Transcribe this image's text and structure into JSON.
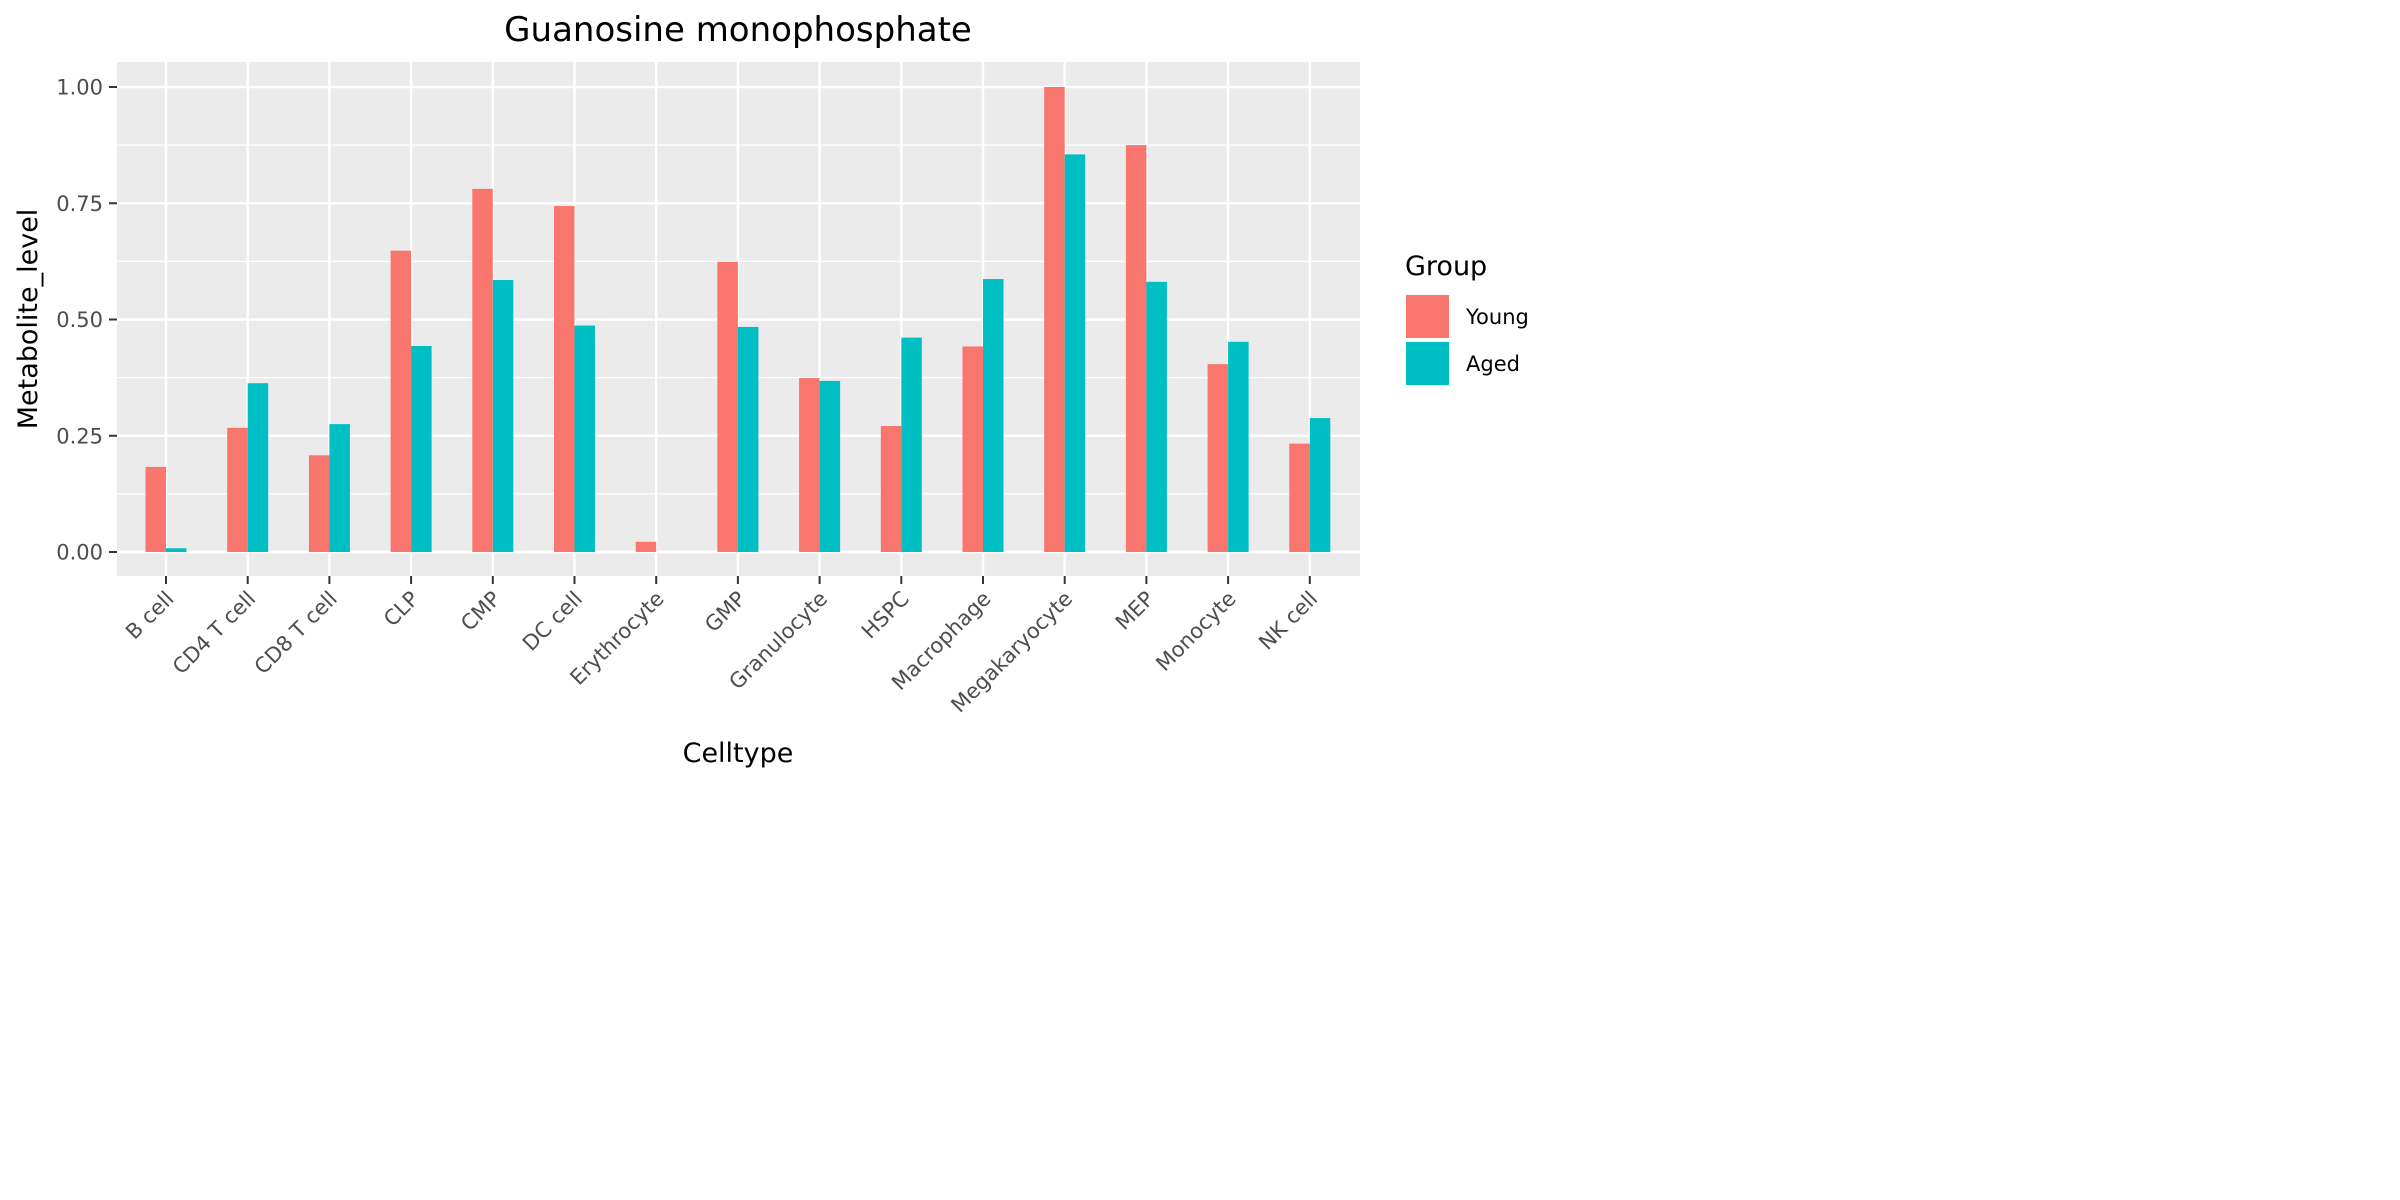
{
  "chart_data": {
    "type": "bar",
    "title": "Guanosine monophosphate",
    "xlabel": "Celltype",
    "ylabel": "Metabolite_level",
    "ylim": [
      -0.05,
      1.05
    ],
    "y_ticks": [
      0.0,
      0.25,
      0.5,
      0.75,
      1.0
    ],
    "y_tick_labels": [
      "0.00",
      "0.25",
      "0.50",
      "0.75",
      "1.00"
    ],
    "categories": [
      "B cell",
      "CD4 T cell",
      "CD8 T cell",
      "CLP",
      "CMP",
      "DC cell",
      "Erythrocyte",
      "GMP",
      "Granulocyte",
      "HSPC",
      "Macrophage",
      "Megakaryocyte",
      "MEP",
      "Monocyte",
      "NK cell"
    ],
    "series": [
      {
        "name": "Young",
        "color": "#F8766D",
        "values": [
          0.183,
          0.267,
          0.208,
          0.648,
          0.781,
          0.744,
          0.022,
          0.624,
          0.374,
          0.271,
          0.442,
          1.0,
          0.875,
          0.404,
          0.233
        ]
      },
      {
        "name": "Aged",
        "color": "#00BFC4",
        "values": [
          0.008,
          0.363,
          0.275,
          0.443,
          0.585,
          0.487,
          0.0,
          0.484,
          0.368,
          0.461,
          0.587,
          0.855,
          0.581,
          0.452,
          0.288
        ]
      }
    ],
    "legend": {
      "title": "Group",
      "position": "right"
    },
    "grid": true,
    "panel_background": "#EBEBEB",
    "grid_color": "#FFFFFF"
  }
}
